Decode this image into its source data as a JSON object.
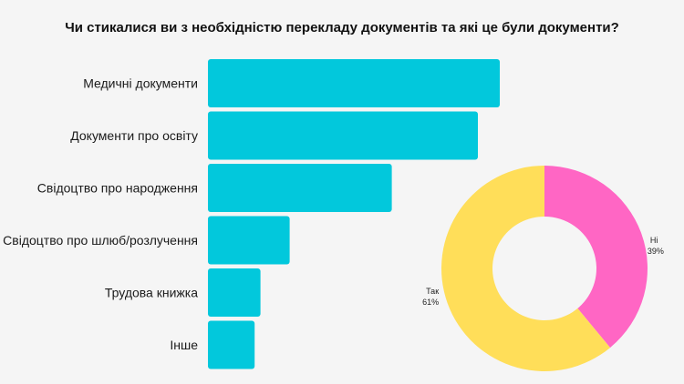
{
  "title": "Чи стикалися ви з необхідністю перекладу документів та які це були документи?",
  "chart_data": [
    {
      "type": "bar",
      "orientation": "horizontal",
      "categories": [
        "Медичні документи",
        "Документи про освіту",
        "Свідоцтво про народження",
        "Свідоцтво про шлюб/розлучення",
        "Трудова книжка",
        "Інше"
      ],
      "values": [
        100,
        92.5,
        63,
        28,
        18,
        16
      ],
      "color": "#02c8dc",
      "grid": false
    },
    {
      "type": "pie",
      "donut": true,
      "slices": [
        {
          "label": "Ні",
          "value_label": "39%",
          "value": 39,
          "color": "#ff66c4"
        },
        {
          "label": "Так",
          "value_label": "61%",
          "value": 61,
          "color": "#ffde59"
        }
      ]
    }
  ]
}
